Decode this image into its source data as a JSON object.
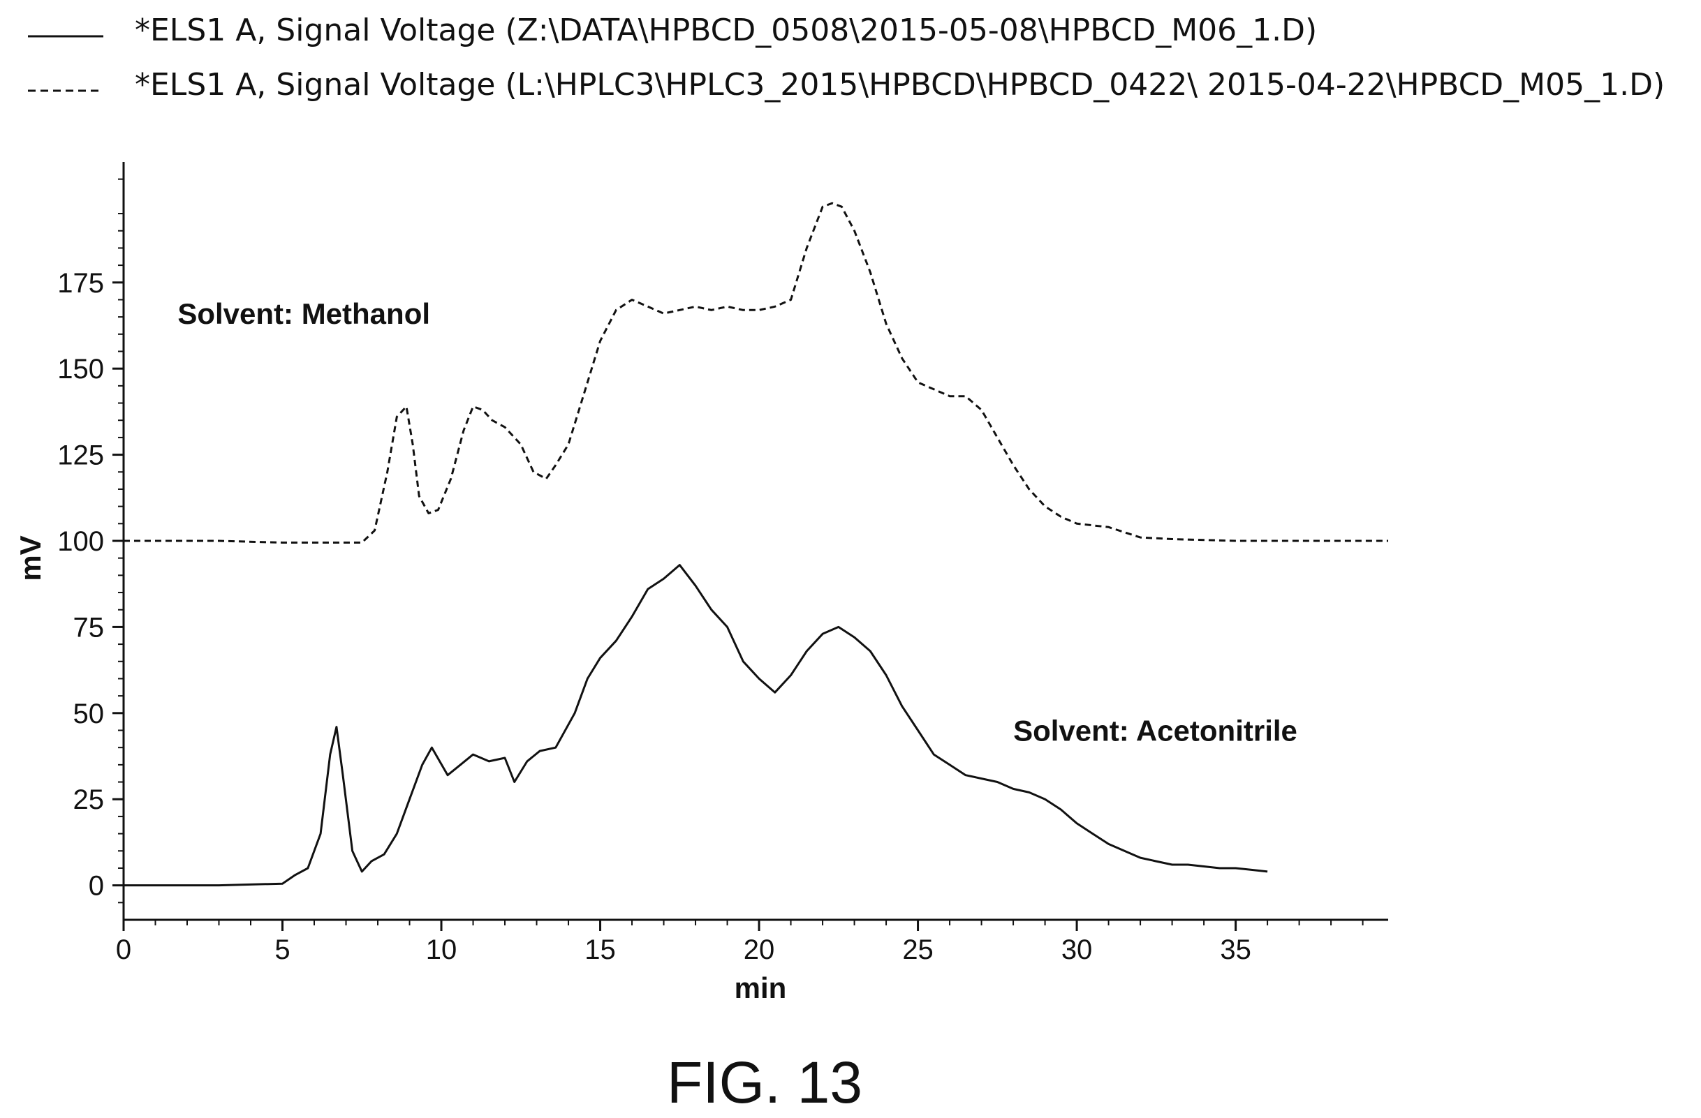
{
  "figure_label": "FIG. 13",
  "chart_data": {
    "type": "line",
    "title": "",
    "xlabel": "min",
    "ylabel": "mV",
    "xlim": [
      0,
      39.8
    ],
    "ylim": [
      -10,
      210
    ],
    "x_ticks": [
      0,
      5,
      10,
      15,
      20,
      25,
      30,
      35
    ],
    "y_ticks": [
      0,
      25,
      50,
      75,
      100,
      125,
      150,
      175
    ],
    "grid": false,
    "legend_position": "top",
    "legend": [
      {
        "style": "solid",
        "label": "*ELS1 A, Signal Voltage (Z:\\DATA\\HPBCD_0508\\2015-05-08\\HPBCD_M06_1.D)"
      },
      {
        "style": "dashed",
        "label": "*ELS1 A, Signal Voltage (L:\\HPLC3\\HPLC3_2015\\HPBCD\\HPBCD_0422\\ 2015-04-22\\HPBCD_M05_1.D)"
      }
    ],
    "annotations": [
      {
        "text": "Solvent: Methanol",
        "x": 1.7,
        "y": 163
      },
      {
        "text": "Solvent: Acetonitrile",
        "x": 28.0,
        "y": 42
      }
    ],
    "series": [
      {
        "style": "solid",
        "x": [
          0,
          3,
          5,
          5.4,
          5.8,
          6.2,
          6.5,
          6.7,
          6.9,
          7.2,
          7.5,
          7.8,
          8.2,
          8.6,
          9.0,
          9.4,
          9.7,
          10.2,
          10.6,
          11.0,
          11.5,
          12.0,
          12.3,
          12.7,
          13.1,
          13.6,
          14.2,
          14.6,
          15.0,
          15.5,
          16.0,
          16.5,
          17.0,
          17.5,
          18.0,
          18.5,
          19.0,
          19.5,
          20.0,
          20.5,
          21.0,
          21.5,
          22.0,
          22.5,
          23.0,
          23.5,
          24.0,
          24.5,
          25.0,
          25.5,
          26.0,
          26.5,
          27.0,
          27.5,
          28.0,
          28.5,
          29.0,
          29.5,
          30.0,
          30.5,
          31.0,
          31.5,
          32.0,
          32.5,
          33.0,
          33.5,
          34.0,
          34.5,
          35.0,
          35.5,
          36.0
        ],
        "y": [
          0,
          0,
          0.5,
          3,
          5,
          15,
          38,
          46,
          32,
          10,
          4,
          7,
          9,
          15,
          25,
          35,
          40,
          32,
          35,
          38,
          36,
          37,
          30,
          36,
          39,
          40,
          50,
          60,
          66,
          71,
          78,
          86,
          89,
          93,
          87,
          80,
          75,
          65,
          60,
          56,
          61,
          68,
          73,
          75,
          72,
          68,
          61,
          52,
          45,
          38,
          35,
          32,
          31,
          30,
          28,
          27,
          25,
          22,
          18,
          15,
          12,
          10,
          8,
          7,
          6,
          6,
          5.5,
          5,
          5,
          4.5,
          4
        ]
      },
      {
        "style": "dashed",
        "x": [
          0,
          3,
          5,
          7.5,
          7.9,
          8.3,
          8.6,
          8.9,
          9.1,
          9.3,
          9.6,
          9.9,
          10.3,
          10.7,
          11.0,
          11.3,
          11.6,
          12.0,
          12.5,
          12.9,
          13.3,
          13.6,
          14.0,
          14.5,
          15.0,
          15.5,
          16.0,
          16.5,
          17.0,
          17.5,
          18.0,
          18.5,
          19.0,
          19.5,
          20.0,
          20.5,
          21.0,
          21.5,
          22.0,
          22.3,
          22.6,
          23.0,
          23.5,
          24.0,
          24.5,
          25.0,
          25.5,
          26.0,
          26.5,
          27.0,
          27.5,
          28.0,
          28.5,
          29.0,
          29.5,
          30.0,
          31.0,
          32.0,
          33.0,
          35.0,
          39.8
        ],
        "y": [
          100,
          100,
          99.5,
          99.5,
          103,
          120,
          136,
          139,
          128,
          113,
          108,
          109,
          118,
          132,
          139,
          138,
          135,
          133,
          128,
          120,
          118,
          122,
          128,
          143,
          158,
          167,
          170,
          168,
          166,
          167,
          168,
          167,
          168,
          167,
          167,
          168,
          170,
          185,
          197,
          198,
          197,
          190,
          178,
          163,
          153,
          146,
          144,
          142,
          142,
          138,
          130,
          122,
          115,
          110,
          107,
          105,
          104,
          101,
          100.5,
          100,
          100
        ]
      }
    ]
  }
}
